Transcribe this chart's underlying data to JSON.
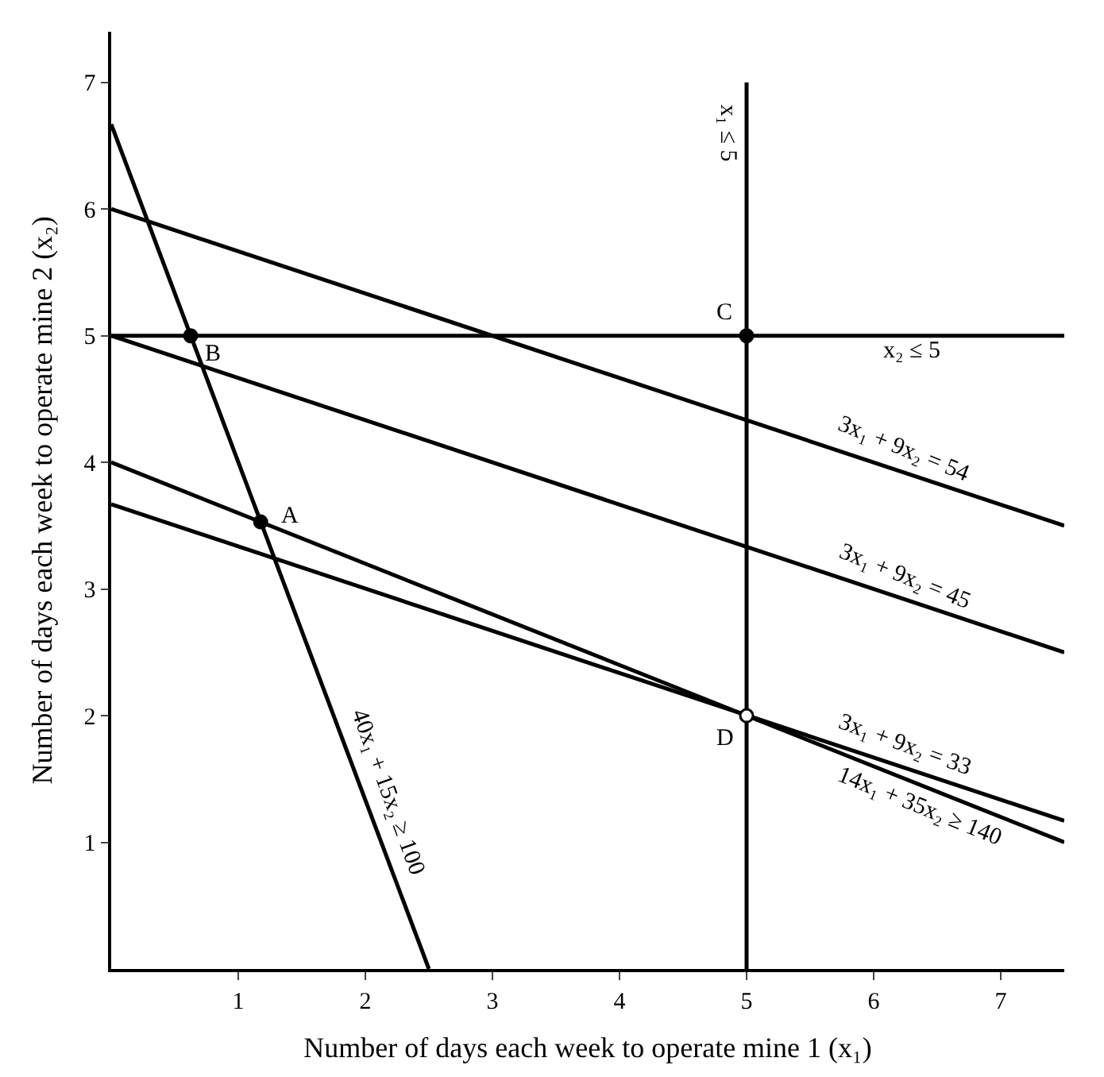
{
  "chart_data": {
    "type": "line",
    "xlabel": "Number of days each week to operate mine 1 (x₁)",
    "ylabel": "Number of days each week to operate mine 2 (x₂)",
    "xlim": [
      0,
      7.5
    ],
    "ylim": [
      0,
      7.4
    ],
    "xticks": [
      1,
      2,
      3,
      4,
      5,
      6,
      7
    ],
    "yticks": [
      1,
      2,
      3,
      4,
      5,
      6,
      7
    ],
    "marker": "none",
    "line_style": "solid",
    "series": [
      {
        "color": "#000000",
        "x": [
          0,
          2.5
        ],
        "values": [
          6.67,
          0
        ]
      },
      {
        "color": "#000000",
        "x": [
          0,
          7.5
        ],
        "values": [
          5,
          5
        ]
      },
      {
        "color": "#000000",
        "x": [
          5,
          5
        ],
        "values": [
          0,
          7
        ]
      },
      {
        "color": "#000000",
        "x": [
          0,
          7.5
        ],
        "values": [
          6,
          3.5
        ]
      },
      {
        "color": "#000000",
        "x": [
          0,
          7.5
        ],
        "values": [
          5,
          2.5
        ]
      },
      {
        "color": "#000000",
        "x": [
          0,
          7.5
        ],
        "values": [
          3.67,
          1.17
        ]
      },
      {
        "color": "#000000",
        "x": [
          0,
          7.5
        ],
        "values": [
          4,
          1
        ]
      },
      {
        "type": "scatter",
        "marker": "circle",
        "color": "#000000",
        "x": [
          0.625,
          1.176,
          5
        ],
        "values": [
          5,
          3.53,
          5
        ]
      },
      {
        "type": "scatter",
        "marker": "circle",
        "color": "#ffffff",
        "x": [
          5
        ],
        "values": [
          2
        ]
      }
    ],
    "annotations": [
      {
        "text": "B",
        "x": 0.625,
        "y": 5
      },
      {
        "text": "A",
        "x": 1.176,
        "y": 3.53
      },
      {
        "text": "C",
        "x": 5,
        "y": 5
      },
      {
        "text": "D",
        "x": 5,
        "y": 2
      },
      {
        "text": "x₁ ≤ 5",
        "x": 5,
        "y": 6.6
      },
      {
        "text": "x₂ ≤ 5",
        "x": 6.3,
        "y": 5
      },
      {
        "text": "3x₁ + 9x₂ = 54",
        "x": 6.3,
        "y": 3.9
      },
      {
        "text": "3x₁ + 9x₂ = 45",
        "x": 6.3,
        "y": 2.9
      },
      {
        "text": "3x₁ + 9x₂ = 33",
        "x": 6.3,
        "y": 1.57
      },
      {
        "text": "14x₁ + 35x₂ ≥ 140",
        "x": 6.3,
        "y": 1.48
      },
      {
        "text": "40x₁ + 15x₂ ≥ 100",
        "x": 2.0,
        "y": 1.33
      }
    ]
  }
}
